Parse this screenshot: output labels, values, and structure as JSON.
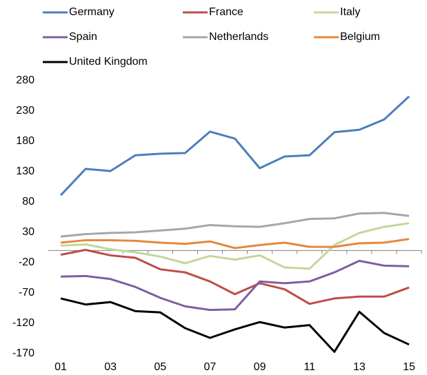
{
  "chart_data": {
    "type": "line",
    "categories": [
      "01",
      null,
      "03",
      null,
      "05",
      null,
      "07",
      null,
      "09",
      null,
      "11",
      null,
      "13",
      null,
      "15"
    ],
    "ylim": [
      -170,
      280
    ],
    "yticks": [
      -170,
      -120,
      -70,
      -20,
      30,
      80,
      130,
      180,
      230,
      280
    ],
    "series": [
      {
        "name": "Germany",
        "color": "#4a7ebb",
        "values": [
          91,
          134.5,
          131,
          157,
          159.5,
          160.7,
          196,
          184.5,
          135.7,
          155,
          157,
          195,
          199,
          216,
          254
        ]
      },
      {
        "name": "France",
        "color": "#be4b48",
        "values": [
          -7,
          1,
          -8,
          -12,
          -31,
          -36,
          -51,
          -72,
          -54,
          -64,
          -88,
          -79,
          -76,
          -76,
          -61
        ]
      },
      {
        "name": "Italy",
        "color": "#c3d69b",
        "values": [
          8,
          10,
          2,
          -3,
          -10,
          -21,
          -9,
          -15,
          -8,
          -28,
          -30,
          9,
          29,
          39,
          45
        ]
      },
      {
        "name": "Spain",
        "color": "#7d5fa0",
        "values": [
          -43,
          -42,
          -47,
          -60,
          -78,
          -92,
          -98,
          -97,
          -51,
          -54,
          -51,
          -36,
          -17,
          -25,
          -26
        ]
      },
      {
        "name": "Netherlands",
        "color": "#a6a6a6",
        "values": [
          23,
          27,
          29,
          30,
          33,
          36,
          42,
          40,
          39,
          45,
          52,
          53,
          61,
          62,
          57
        ]
      },
      {
        "name": "Belgium",
        "color": "#e4883d",
        "values": [
          13,
          17,
          17,
          16,
          13,
          11,
          15,
          4,
          9,
          13,
          6,
          6,
          12,
          13,
          19
        ]
      },
      {
        "name": "United Kingdom",
        "color": "#000000",
        "values": [
          -79,
          -89,
          -85,
          -100,
          -102,
          -128,
          -144,
          -130,
          -118,
          -127,
          -123,
          -167,
          -101,
          -136,
          -155
        ]
      }
    ]
  }
}
